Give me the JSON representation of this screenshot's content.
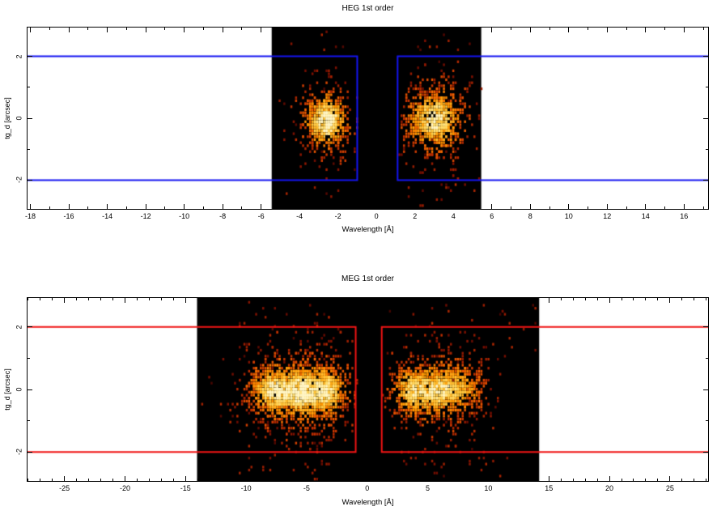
{
  "figure": {
    "background": "#ffffff",
    "frame_color": "#000000"
  },
  "chart_data": [
    {
      "type": "heatmap",
      "title": "HEG 1st order",
      "xlabel": "Wavelength [Å]",
      "ylabel": "tg_d [arcsec]",
      "xlim": [
        -18.15,
        17.25
      ],
      "ylim": [
        -2.93,
        2.93
      ],
      "xticks": [
        -18,
        -16,
        -14,
        -12,
        -10,
        -8,
        -6,
        -4,
        -2,
        0,
        2,
        4,
        6,
        8,
        10,
        12,
        14,
        16
      ],
      "xtick_minor_step": 1,
      "yticks": [
        -2,
        0,
        2
      ],
      "ytick_minor": [
        -1,
        1
      ],
      "grid": false,
      "legend": false,
      "image_extent": [
        -5.45,
        5.45
      ],
      "image_bg": "#000000",
      "region": {
        "color": "#1414f0",
        "y_range": [
          -2,
          2
        ],
        "gap_x": [
          -1.0,
          1.1
        ],
        "line_width": 2
      },
      "clusters": [
        {
          "x": -2.65,
          "y": -0.05,
          "sx": 0.55,
          "sy": 0.42,
          "n": 500
        },
        {
          "x": -2.65,
          "y": 0.0,
          "sx": 1.05,
          "sy": 0.85,
          "n": 150
        },
        {
          "x": 3.0,
          "y": 0.0,
          "sx": 0.72,
          "sy": 0.48,
          "n": 650
        },
        {
          "x": 3.05,
          "y": 0.0,
          "sx": 1.25,
          "sy": 0.95,
          "n": 200
        }
      ],
      "streaks": [
        {
          "x_range": [
            -3.3,
            -1.9
          ],
          "n": 26
        },
        {
          "x_range": [
            2.2,
            4.2
          ],
          "n": 36
        },
        {
          "x_range": [
            -5.4,
            5.4
          ],
          "n": 24
        }
      ],
      "colormap": "hot",
      "heat_stops": [
        [
          0.0,
          "#2a0000"
        ],
        [
          0.18,
          "#7e1000"
        ],
        [
          0.38,
          "#c03000"
        ],
        [
          0.55,
          "#ef5f00"
        ],
        [
          0.72,
          "#ff9800"
        ],
        [
          0.86,
          "#ffc63c"
        ],
        [
          0.95,
          "#ffe27a"
        ],
        [
          1.0,
          "#fff6c8"
        ]
      ],
      "seed": 42
    },
    {
      "type": "heatmap",
      "title": "MEG 1st order",
      "xlabel": "Wavelength [Å]",
      "ylabel": "tg_d [arcsec]",
      "xlim": [
        -28.05,
        28.15
      ],
      "ylim": [
        -2.93,
        2.93
      ],
      "xticks": [
        -25,
        -20,
        -15,
        -10,
        -5,
        0,
        5,
        10,
        15,
        20,
        25
      ],
      "xtick_minor_step": 1,
      "yticks": [
        -2,
        0,
        2
      ],
      "ytick_minor": [
        -1,
        1
      ],
      "grid": false,
      "legend": false,
      "image_extent": [
        -14.05,
        14.2
      ],
      "image_bg": "#000000",
      "region": {
        "color": "#f01414",
        "y_range": [
          -2,
          2
        ],
        "gap_x": [
          -0.95,
          1.2
        ],
        "line_width": 2
      },
      "clusters": [
        {
          "x": -7.7,
          "y": 0.0,
          "sx": 1.05,
          "sy": 0.4,
          "n": 600
        },
        {
          "x": -5.4,
          "y": -0.05,
          "sx": 0.85,
          "sy": 0.42,
          "n": 480
        },
        {
          "x": -3.4,
          "y": 0.0,
          "sx": 0.85,
          "sy": 0.4,
          "n": 420
        },
        {
          "x": -6.3,
          "y": 0.0,
          "sx": 2.5,
          "sy": 0.85,
          "n": 420
        },
        {
          "x": -3.6,
          "y": 0.0,
          "sx": 1.4,
          "sy": 0.8,
          "n": 160
        },
        {
          "x": 3.6,
          "y": 0.0,
          "sx": 0.85,
          "sy": 0.4,
          "n": 380
        },
        {
          "x": 5.6,
          "y": 0.0,
          "sx": 0.95,
          "sy": 0.42,
          "n": 420
        },
        {
          "x": 7.5,
          "y": 0.05,
          "sx": 1.0,
          "sy": 0.4,
          "n": 330
        },
        {
          "x": 5.6,
          "y": 0.0,
          "sx": 2.4,
          "sy": 0.85,
          "n": 330
        }
      ],
      "streaks": [
        {
          "x_range": [
            -11.0,
            -2.0
          ],
          "n": 110
        },
        {
          "x_range": [
            2.5,
            9.8
          ],
          "n": 80
        },
        {
          "x_range": [
            -14.0,
            14.1
          ],
          "n": 48
        }
      ],
      "colormap": "hot",
      "heat_stops": [
        [
          0.0,
          "#2a0000"
        ],
        [
          0.18,
          "#7e1000"
        ],
        [
          0.38,
          "#c03000"
        ],
        [
          0.55,
          "#ef5f00"
        ],
        [
          0.72,
          "#ff9800"
        ],
        [
          0.86,
          "#ffc63c"
        ],
        [
          0.95,
          "#ffe27a"
        ],
        [
          1.0,
          "#fff6c8"
        ]
      ],
      "seed": 1337
    }
  ]
}
